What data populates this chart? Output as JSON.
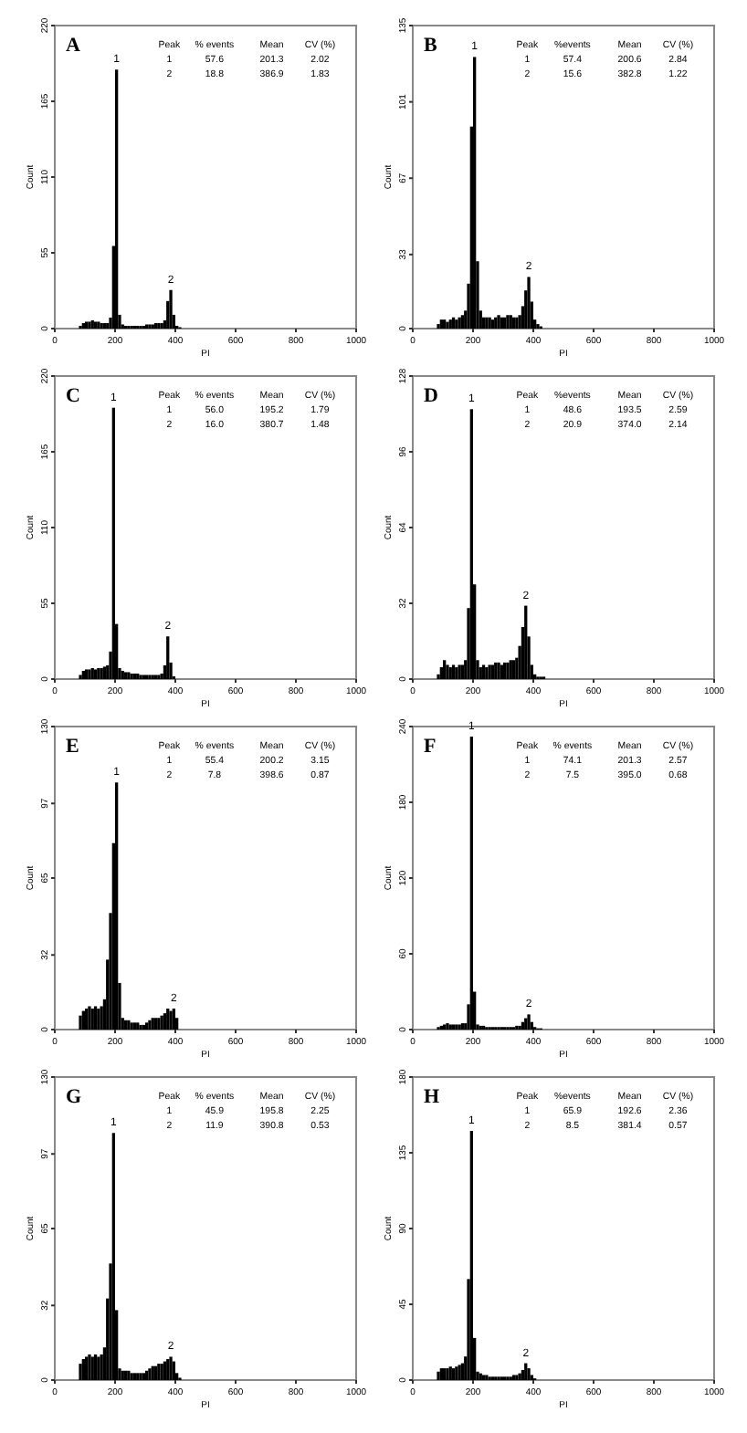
{
  "chart_data": [
    {
      "type": "histogram",
      "title": "A",
      "xlabel": "PI",
      "ylabel": "Count",
      "xlim": [
        0,
        1000
      ],
      "ylim": [
        0,
        220
      ],
      "xticks": [
        0,
        200,
        400,
        600,
        800,
        1000
      ],
      "yticks": [
        0,
        55,
        110,
        165,
        220
      ],
      "color": "#000000",
      "bins": [
        80,
        90,
        100,
        110,
        120,
        130,
        140,
        150,
        160,
        170,
        180,
        190,
        200,
        210,
        220,
        230,
        240,
        250,
        260,
        270,
        280,
        290,
        300,
        310,
        320,
        330,
        340,
        350,
        360,
        370,
        380,
        390,
        400,
        410,
        420,
        430,
        440,
        450,
        460
      ],
      "values": [
        2,
        4,
        5,
        5,
        6,
        5,
        5,
        4,
        4,
        4,
        8,
        60,
        188,
        10,
        3,
        2,
        2,
        2,
        2,
        2,
        2,
        2,
        3,
        3,
        3,
        4,
        4,
        4,
        6,
        20,
        28,
        10,
        2,
        1,
        0,
        0,
        0,
        0
      ],
      "annotations": [
        "Peak",
        "% events",
        "Mean",
        "CV (%)",
        "1",
        "57.6",
        "201.3",
        "2.02",
        "2",
        "18.8",
        "386.9",
        "1.83",
        {
          "text": "1",
          "x": 205,
          "y": 188
        },
        {
          "text": "2",
          "x": 385,
          "y": 28
        }
      ]
    },
    {
      "type": "histogram",
      "title": "B",
      "xlabel": "PI",
      "ylabel": "Count",
      "xlim": [
        0,
        1000
      ],
      "ylim": [
        0,
        135
      ],
      "xticks": [
        0,
        200,
        400,
        600,
        800,
        1000
      ],
      "yticks": [
        0,
        33,
        67,
        101,
        135
      ],
      "color": "#000000",
      "bins": [
        80,
        90,
        100,
        110,
        120,
        130,
        140,
        150,
        160,
        170,
        180,
        190,
        200,
        210,
        220,
        230,
        240,
        250,
        260,
        270,
        280,
        290,
        300,
        310,
        320,
        330,
        340,
        350,
        360,
        370,
        380,
        390,
        400,
        410,
        420,
        430,
        440,
        450,
        460
      ],
      "values": [
        2,
        4,
        4,
        3,
        4,
        5,
        4,
        5,
        6,
        8,
        20,
        90,
        121,
        30,
        8,
        5,
        5,
        5,
        4,
        5,
        6,
        5,
        5,
        6,
        6,
        5,
        5,
        6,
        10,
        17,
        23,
        12,
        4,
        2,
        1,
        0,
        0,
        0
      ],
      "annotations": [
        "Peak",
        "%events",
        "Mean",
        "CV (%)",
        "1",
        "57.4",
        "200.6",
        "2.84",
        "2",
        "15.6",
        "382.8",
        "1.22",
        {
          "text": "1",
          "x": 205,
          "y": 121
        },
        {
          "text": "2",
          "x": 385,
          "y": 23
        }
      ]
    },
    {
      "type": "histogram",
      "title": "C",
      "xlabel": "PI",
      "ylabel": "Count",
      "xlim": [
        0,
        1000
      ],
      "ylim": [
        0,
        220
      ],
      "xticks": [
        0,
        200,
        400,
        600,
        800,
        1000
      ],
      "yticks": [
        0,
        55,
        110,
        165,
        220
      ],
      "color": "#000000",
      "bins": [
        80,
        90,
        100,
        110,
        120,
        130,
        140,
        150,
        160,
        170,
        180,
        190,
        200,
        210,
        220,
        230,
        240,
        250,
        260,
        270,
        280,
        290,
        300,
        310,
        320,
        330,
        340,
        350,
        360,
        370,
        380,
        390,
        400,
        410,
        420,
        430,
        440,
        450,
        460
      ],
      "values": [
        3,
        6,
        7,
        7,
        8,
        7,
        8,
        8,
        9,
        10,
        20,
        197,
        40,
        8,
        6,
        5,
        5,
        4,
        4,
        4,
        3,
        3,
        3,
        3,
        3,
        3,
        3,
        4,
        10,
        31,
        12,
        2,
        0,
        0,
        0,
        0,
        0,
        0
      ],
      "annotations": [
        "Peak",
        "% events",
        "Mean",
        "CV (%)",
        "1",
        "56.0",
        "195.2",
        "1.79",
        "2",
        "16.0",
        "380.7",
        "1.48",
        {
          "text": "1",
          "x": 195,
          "y": 197
        },
        {
          "text": "2",
          "x": 375,
          "y": 31
        }
      ]
    },
    {
      "type": "histogram",
      "title": "D",
      "xlabel": "PI",
      "ylabel": "Count",
      "xlim": [
        0,
        1000
      ],
      "ylim": [
        0,
        128
      ],
      "xticks": [
        0,
        200,
        400,
        600,
        800,
        1000
      ],
      "yticks": [
        0,
        32,
        64,
        96,
        128
      ],
      "color": "#000000",
      "bins": [
        80,
        90,
        100,
        110,
        120,
        130,
        140,
        150,
        160,
        170,
        180,
        190,
        200,
        210,
        220,
        230,
        240,
        250,
        260,
        270,
        280,
        290,
        300,
        310,
        320,
        330,
        340,
        350,
        360,
        370,
        380,
        390,
        400,
        410,
        420,
        430,
        440,
        450,
        460
      ],
      "values": [
        2,
        5,
        8,
        6,
        5,
        6,
        5,
        6,
        6,
        8,
        30,
        114,
        40,
        8,
        5,
        6,
        5,
        6,
        6,
        7,
        7,
        6,
        7,
        7,
        8,
        8,
        9,
        14,
        22,
        31,
        18,
        6,
        2,
        1,
        1,
        1,
        0,
        0
      ],
      "annotations": [
        "Peak",
        "%events",
        "Mean",
        "CV (%)",
        "1",
        "48.6",
        "193.5",
        "2.59",
        "2",
        "20.9",
        "374.0",
        "2.14",
        {
          "text": "1",
          "x": 195,
          "y": 114
        },
        {
          "text": "2",
          "x": 375,
          "y": 31
        }
      ]
    },
    {
      "type": "histogram",
      "title": "E",
      "xlabel": "PI",
      "ylabel": "Count",
      "xlim": [
        0,
        1000
      ],
      "ylim": [
        0,
        130
      ],
      "xticks": [
        0,
        200,
        400,
        600,
        800,
        1000
      ],
      "yticks": [
        0,
        32,
        65,
        97,
        130
      ],
      "color": "#000000",
      "bins": [
        80,
        90,
        100,
        110,
        120,
        130,
        140,
        150,
        160,
        170,
        180,
        190,
        200,
        210,
        220,
        230,
        240,
        250,
        260,
        270,
        280,
        290,
        300,
        310,
        320,
        330,
        340,
        350,
        360,
        370,
        380,
        390,
        400,
        410,
        420,
        430,
        440,
        450,
        460
      ],
      "values": [
        6,
        8,
        9,
        10,
        9,
        10,
        9,
        10,
        13,
        30,
        50,
        80,
        106,
        20,
        5,
        4,
        4,
        3,
        3,
        3,
        2,
        2,
        3,
        4,
        5,
        5,
        5,
        6,
        7,
        9,
        8,
        9,
        5,
        0,
        0,
        0,
        0,
        0
      ],
      "annotations": [
        "Peak",
        "% events",
        "Mean",
        "CV (%)",
        "1",
        "55.4",
        "200.2",
        "3.15",
        "2",
        "7.8",
        "398.6",
        "0.87",
        {
          "text": "1",
          "x": 205,
          "y": 106
        },
        {
          "text": "2",
          "x": 395,
          "y": 9
        }
      ]
    },
    {
      "type": "histogram",
      "title": "F",
      "xlabel": "PI",
      "ylabel": "Count",
      "xlim": [
        0,
        1000
      ],
      "ylim": [
        0,
        240
      ],
      "xticks": [
        0,
        200,
        400,
        600,
        800,
        1000
      ],
      "yticks": [
        0,
        60,
        120,
        180,
        240
      ],
      "color": "#000000",
      "bins": [
        80,
        90,
        100,
        110,
        120,
        130,
        140,
        150,
        160,
        170,
        180,
        190,
        200,
        210,
        220,
        230,
        240,
        250,
        260,
        270,
        280,
        290,
        300,
        310,
        320,
        330,
        340,
        350,
        360,
        370,
        380,
        390,
        400,
        410,
        420,
        430,
        440,
        450,
        460
      ],
      "values": [
        2,
        3,
        4,
        5,
        4,
        4,
        4,
        4,
        5,
        5,
        20,
        232,
        30,
        4,
        3,
        3,
        2,
        2,
        2,
        2,
        2,
        2,
        2,
        2,
        2,
        2,
        3,
        3,
        6,
        9,
        12,
        6,
        2,
        1,
        1,
        0,
        0,
        0
      ],
      "annotations": [
        "Peak",
        "% events",
        "Mean",
        "CV (%)",
        "1",
        "74.1",
        "201.3",
        "2.57",
        "2",
        "7.5",
        "395.0",
        "0.68",
        {
          "text": "1",
          "x": 195,
          "y": 232
        },
        {
          "text": "2",
          "x": 385,
          "y": 12
        }
      ]
    },
    {
      "type": "histogram",
      "title": "G",
      "xlabel": "PI",
      "ylabel": "Count",
      "xlim": [
        0,
        1000
      ],
      "ylim": [
        0,
        130
      ],
      "xticks": [
        0,
        200,
        400,
        600,
        800,
        1000
      ],
      "yticks": [
        0,
        32,
        65,
        97,
        130
      ],
      "color": "#000000",
      "bins": [
        80,
        90,
        100,
        110,
        120,
        130,
        140,
        150,
        160,
        170,
        180,
        190,
        200,
        210,
        220,
        230,
        240,
        250,
        260,
        270,
        280,
        290,
        300,
        310,
        320,
        330,
        340,
        350,
        360,
        370,
        380,
        390,
        400,
        410,
        420,
        430,
        440,
        450,
        460
      ],
      "values": [
        7,
        9,
        10,
        11,
        10,
        11,
        10,
        11,
        14,
        35,
        50,
        106,
        30,
        5,
        4,
        4,
        4,
        3,
        3,
        3,
        3,
        3,
        4,
        5,
        6,
        6,
        7,
        7,
        8,
        9,
        10,
        8,
        3,
        1,
        0,
        0,
        0,
        0
      ],
      "annotations": [
        "Peak",
        "% events",
        "Mean",
        "CV (%)",
        "1",
        "45.9",
        "195.8",
        "2.25",
        "2",
        "11.9",
        "390.8",
        "0.53",
        {
          "text": "1",
          "x": 195,
          "y": 106
        },
        {
          "text": "2",
          "x": 385,
          "y": 10
        }
      ]
    },
    {
      "type": "histogram",
      "title": "H",
      "xlabel": "PI",
      "ylabel": "Count",
      "xlim": [
        0,
        1000
      ],
      "ylim": [
        0,
        180
      ],
      "xticks": [
        0,
        200,
        400,
        600,
        800,
        1000
      ],
      "yticks": [
        0,
        45,
        90,
        135,
        180
      ],
      "color": "#000000",
      "bins": [
        80,
        90,
        100,
        110,
        120,
        130,
        140,
        150,
        160,
        170,
        180,
        190,
        200,
        210,
        220,
        230,
        240,
        250,
        260,
        270,
        280,
        290,
        300,
        310,
        320,
        330,
        340,
        350,
        360,
        370,
        380,
        390,
        400,
        410,
        420,
        430,
        440,
        450,
        460
      ],
      "values": [
        5,
        7,
        7,
        7,
        8,
        7,
        8,
        9,
        10,
        14,
        60,
        148,
        25,
        5,
        4,
        3,
        3,
        2,
        2,
        2,
        2,
        2,
        2,
        2,
        2,
        3,
        3,
        4,
        6,
        10,
        7,
        3,
        1,
        0,
        0,
        0,
        0,
        0
      ],
      "annotations": [
        "Peak",
        "%events",
        "Mean",
        "CV (%)",
        "1",
        "65.9",
        "192.6",
        "2.36",
        "2",
        "8.5",
        "381.4",
        "0.57",
        {
          "text": "1",
          "x": 195,
          "y": 148
        },
        {
          "text": "2",
          "x": 375,
          "y": 10
        }
      ]
    }
  ]
}
